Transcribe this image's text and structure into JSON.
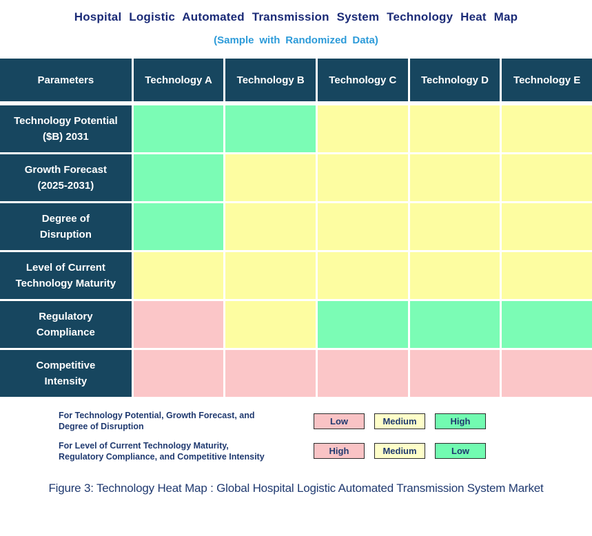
{
  "title": "Hospital Logistic Automated Transmission System Technology Heat Map",
  "subtitle": "(Sample with Randomized Data)",
  "caption": "Figure 3: Technology Heat Map :  Global Hospital Logistic Automated Transmission System Market",
  "colors": {
    "header_bg": "#17465f",
    "title_text": "#1b2b77",
    "subtitle_text": "#2d9bd9",
    "body_text": "#203a70",
    "green": "#7bfcb5",
    "yellow": "#fdfda1",
    "pink": "#fbc6c8",
    "legend_green": "#72fbb1",
    "legend_yellow": "#fefec9",
    "legend_pink": "#f9c3c5",
    "cell_border": "#ffffff",
    "legend_box_border": "#2b2b2b"
  },
  "chart_data": {
    "type": "heatmap",
    "columns": [
      "Parameters",
      "Technology A",
      "Technology B",
      "Technology C",
      "Technology D",
      "Technology E"
    ],
    "rows": [
      {
        "label": "Technology Potential\n($B) 2031",
        "cells": [
          "green",
          "green",
          "yellow",
          "yellow",
          "yellow"
        ],
        "levels": [
          "High",
          "High",
          "Medium",
          "Medium",
          "Medium"
        ]
      },
      {
        "label": "Growth Forecast\n(2025-2031)",
        "cells": [
          "green",
          "yellow",
          "yellow",
          "yellow",
          "yellow"
        ],
        "levels": [
          "High",
          "Medium",
          "Medium",
          "Medium",
          "Medium"
        ]
      },
      {
        "label": "Degree of\nDisruption",
        "cells": [
          "green",
          "yellow",
          "yellow",
          "yellow",
          "yellow"
        ],
        "levels": [
          "High",
          "Medium",
          "Medium",
          "Medium",
          "Medium"
        ]
      },
      {
        "label": "Level of Current\nTechnology Maturity",
        "cells": [
          "yellow",
          "yellow",
          "yellow",
          "yellow",
          "yellow"
        ],
        "levels": [
          "Medium",
          "Medium",
          "Medium",
          "Medium",
          "Medium"
        ]
      },
      {
        "label": "Regulatory\nCompliance",
        "cells": [
          "pink",
          "yellow",
          "green",
          "green",
          "green"
        ],
        "levels": [
          "High",
          "Medium",
          "Low",
          "Low",
          "Low"
        ]
      },
      {
        "label": "Competitive\nIntensity",
        "cells": [
          "pink",
          "pink",
          "pink",
          "pink",
          "pink"
        ],
        "levels": [
          "High",
          "High",
          "High",
          "High",
          "High"
        ]
      }
    ],
    "legend": {
      "groups": [
        {
          "label": "For Technology Potential, Growth Forecast, and\nDegree of Disruption",
          "items": [
            {
              "text": "Low",
              "color": "pink"
            },
            {
              "text": "Medium",
              "color": "yellow"
            },
            {
              "text": "High",
              "color": "green"
            }
          ]
        },
        {
          "label": "For Level of Current Technology Maturity,\nRegulatory Compliance, and Competitive Intensity",
          "items": [
            {
              "text": "High",
              "color": "pink"
            },
            {
              "text": "Medium",
              "color": "yellow"
            },
            {
              "text": "Low",
              "color": "green"
            }
          ]
        }
      ]
    }
  }
}
